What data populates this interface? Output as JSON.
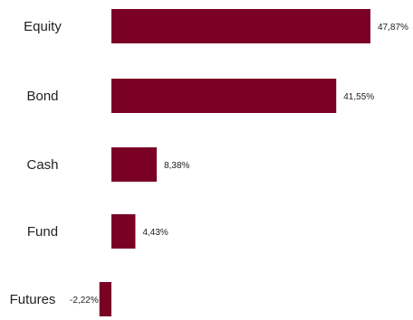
{
  "chart_data": {
    "type": "bar",
    "orientation": "horizontal",
    "categories": [
      "Equity",
      "Bond",
      "Cash",
      "Fund",
      "Futures"
    ],
    "values": [
      47.87,
      41.55,
      8.38,
      4.43,
      -2.22
    ],
    "value_labels": [
      "47,87%",
      "41,55%",
      "8,38%",
      "4,43%",
      "-2,22%"
    ],
    "bar_color": "#7a0026",
    "title": "",
    "xlabel": "",
    "ylabel": "",
    "grid": false,
    "legend": "none"
  }
}
